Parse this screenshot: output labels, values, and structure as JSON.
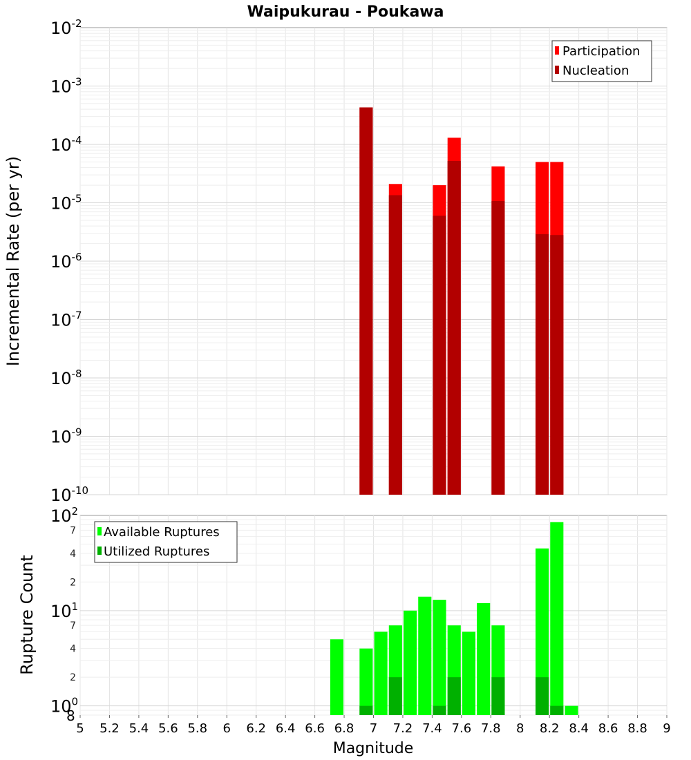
{
  "chart_data": [
    {
      "type": "bar",
      "title": "Waipukurau - Poukawa",
      "xlabel": "",
      "ylabel": "Incremental Rate (per yr)",
      "y_scale": "log",
      "ylim": [
        1e-10,
        0.01
      ],
      "xlim": [
        5,
        9
      ],
      "bar_width": 0.09,
      "legend": {
        "placement": "top-right",
        "entries": [
          "Participation",
          "Nucleation"
        ]
      },
      "grid": true,
      "series": [
        {
          "name": "Participation",
          "color": "#ff0000",
          "x": [
            6.95,
            7.15,
            7.45,
            7.55,
            7.85,
            8.15,
            8.25
          ],
          "values": [
            0.00043,
            2.1e-05,
            2e-05,
            0.00013,
            4.2e-05,
            5e-05,
            5e-05
          ]
        },
        {
          "name": "Nucleation",
          "color": "#b20000",
          "x": [
            6.95,
            7.15,
            7.45,
            7.55,
            7.85,
            8.15,
            8.25
          ],
          "values": [
            0.00043,
            1.35e-05,
            6e-06,
            5.2e-05,
            1.07e-05,
            2.9e-06,
            2.8e-06
          ]
        }
      ],
      "y_ticks": [
        {
          "base": "10",
          "exp": "-2"
        },
        {
          "base": "10",
          "exp": "-3"
        },
        {
          "base": "10",
          "exp": "-4"
        },
        {
          "base": "10",
          "exp": "-5"
        },
        {
          "base": "10",
          "exp": "-6"
        },
        {
          "base": "10",
          "exp": "-7"
        },
        {
          "base": "10",
          "exp": "-8"
        },
        {
          "base": "10",
          "exp": "-9"
        },
        {
          "base": "10",
          "exp": "-10"
        }
      ]
    },
    {
      "type": "bar",
      "title": "",
      "xlabel": "Magnitude",
      "ylabel": "Rupture Count",
      "y_scale": "log",
      "ylim": [
        0.8,
        100
      ],
      "xlim": [
        5,
        9
      ],
      "bar_width": 0.09,
      "legend": {
        "placement": "top-left",
        "entries": [
          "Available Ruptures",
          "Utilized Ruptures"
        ]
      },
      "grid": true,
      "series": [
        {
          "name": "Available Ruptures",
          "color": "#00ff00",
          "x": [
            6.75,
            6.95,
            7.05,
            7.15,
            7.25,
            7.35,
            7.45,
            7.55,
            7.65,
            7.75,
            7.85,
            8.15,
            8.25,
            8.35
          ],
          "values": [
            5,
            4,
            6,
            7,
            10,
            14,
            13,
            7,
            6,
            12,
            7,
            45,
            85,
            1
          ]
        },
        {
          "name": "Utilized Ruptures",
          "color": "#00b000",
          "x": [
            6.95,
            7.15,
            7.45,
            7.55,
            7.85,
            8.15,
            8.25
          ],
          "values": [
            1,
            2,
            1,
            2,
            2,
            2,
            1
          ]
        }
      ],
      "y_major_ticks": [
        {
          "base": "10",
          "exp": "2",
          "value": 100
        },
        {
          "base": "10",
          "exp": "1",
          "value": 10
        },
        {
          "base": "10",
          "exp": "0",
          "value": 1
        }
      ],
      "y_minor_ticks": [
        {
          "label": "7",
          "value": 70
        },
        {
          "label": "4",
          "value": 40
        },
        {
          "label": "2",
          "value": 20
        },
        {
          "label": "7",
          "value": 7
        },
        {
          "label": "4",
          "value": 4
        },
        {
          "label": "2",
          "value": 2
        },
        {
          "label": "8",
          "value": 0.8
        }
      ],
      "x_ticks": [
        "5",
        "5.2",
        "5.4",
        "5.6",
        "5.8",
        "6",
        "6.2",
        "6.4",
        "6.6",
        "6.8",
        "7",
        "7.2",
        "7.4",
        "7.6",
        "7.8",
        "8",
        "8.2",
        "8.4",
        "8.6",
        "8.8",
        "9"
      ]
    }
  ]
}
